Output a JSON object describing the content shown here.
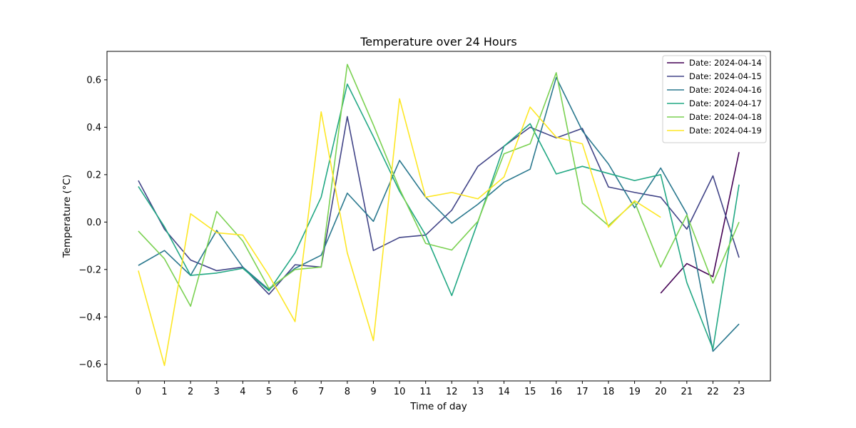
{
  "chart_data": {
    "type": "line",
    "title": "Temperature over 24 Hours",
    "xlabel": "Time of day",
    "ylabel": "Temperature (°C)",
    "x": [
      0,
      1,
      2,
      3,
      4,
      5,
      6,
      7,
      8,
      9,
      10,
      11,
      12,
      13,
      14,
      15,
      16,
      17,
      18,
      19,
      20,
      21,
      22,
      23
    ],
    "xlim": [
      -1.2,
      24.2
    ],
    "ylim": [
      -0.67,
      0.72
    ],
    "yticks": [
      -0.6,
      -0.4,
      -0.2,
      0.0,
      0.2,
      0.4,
      0.6
    ],
    "ytick_labels": [
      "−0.6",
      "−0.4",
      "−0.2",
      "0.0",
      "0.2",
      "0.4",
      "0.6"
    ],
    "grid": false,
    "legend_position": "upper right",
    "series": [
      {
        "name": "Date: 2024-04-14",
        "color": "#440154",
        "x": [
          20,
          21,
          22,
          23
        ],
        "values": [
          -0.3,
          -0.175,
          -0.23,
          0.295
        ]
      },
      {
        "name": "Date: 2024-04-15",
        "color": "#414487",
        "x": [
          0,
          1,
          2,
          3,
          4,
          5,
          6,
          7,
          8,
          9,
          10,
          11,
          12,
          13,
          14,
          15,
          16,
          17,
          18,
          19,
          20,
          21,
          22,
          23
        ],
        "values": [
          0.175,
          -0.03,
          -0.16,
          -0.205,
          -0.19,
          -0.305,
          -0.18,
          -0.19,
          0.445,
          -0.12,
          -0.065,
          -0.055,
          0.05,
          0.235,
          0.32,
          0.4,
          0.355,
          0.395,
          0.148,
          0.125,
          0.105,
          -0.03,
          0.195,
          -0.15
        ]
      },
      {
        "name": "Date: 2024-04-16",
        "color": "#2a788e",
        "x": [
          0,
          1,
          2,
          3,
          4,
          5,
          6,
          7,
          8,
          9,
          10,
          11,
          12,
          13,
          14,
          15,
          16,
          17,
          18,
          19,
          20,
          21,
          22,
          23
        ],
        "values": [
          -0.183,
          -0.12,
          -0.225,
          -0.035,
          -0.19,
          -0.285,
          -0.195,
          -0.14,
          0.122,
          0.003,
          0.26,
          0.105,
          -0.005,
          0.075,
          0.168,
          0.223,
          0.61,
          0.385,
          0.245,
          0.06,
          0.228,
          0.035,
          -0.545,
          -0.43
        ]
      },
      {
        "name": "Date: 2024-04-17",
        "color": "#22a884",
        "x": [
          0,
          1,
          2,
          3,
          4,
          5,
          6,
          7,
          8,
          9,
          10,
          11,
          12,
          13,
          14,
          15,
          16,
          17,
          18,
          19,
          20,
          21,
          22,
          23
        ],
        "values": [
          0.15,
          -0.02,
          -0.225,
          -0.215,
          -0.195,
          -0.29,
          -0.13,
          0.105,
          0.582,
          0.36,
          0.13,
          -0.055,
          -0.31,
          0.0,
          0.32,
          0.415,
          0.203,
          0.235,
          0.205,
          0.175,
          0.2,
          -0.255,
          -0.535,
          0.158
        ]
      },
      {
        "name": "Date: 2024-04-18",
        "color": "#7ad151",
        "x": [
          0,
          1,
          2,
          3,
          4,
          5,
          6,
          7,
          8,
          9,
          10,
          11,
          12,
          13,
          14,
          15,
          16,
          17,
          18,
          19,
          20,
          21,
          22,
          23
        ],
        "values": [
          -0.038,
          -0.155,
          -0.355,
          0.045,
          -0.08,
          -0.28,
          -0.2,
          -0.19,
          0.665,
          0.41,
          0.14,
          -0.09,
          -0.118,
          0.003,
          0.288,
          0.33,
          0.63,
          0.08,
          -0.015,
          0.085,
          -0.19,
          0.03,
          -0.258,
          0.0
        ]
      },
      {
        "name": "Date: 2024-04-19",
        "color": "#fde725",
        "x": [
          0,
          1,
          2,
          3,
          4,
          5,
          6,
          7,
          8,
          9,
          10,
          11,
          12,
          13,
          14,
          15,
          16,
          17,
          18,
          19,
          20
        ],
        "values": [
          -0.205,
          -0.605,
          0.035,
          -0.045,
          -0.055,
          -0.225,
          -0.42,
          0.465,
          -0.13,
          -0.5,
          0.52,
          0.105,
          0.125,
          0.098,
          0.19,
          0.485,
          0.358,
          0.33,
          -0.022,
          0.09,
          0.02
        ]
      }
    ]
  }
}
